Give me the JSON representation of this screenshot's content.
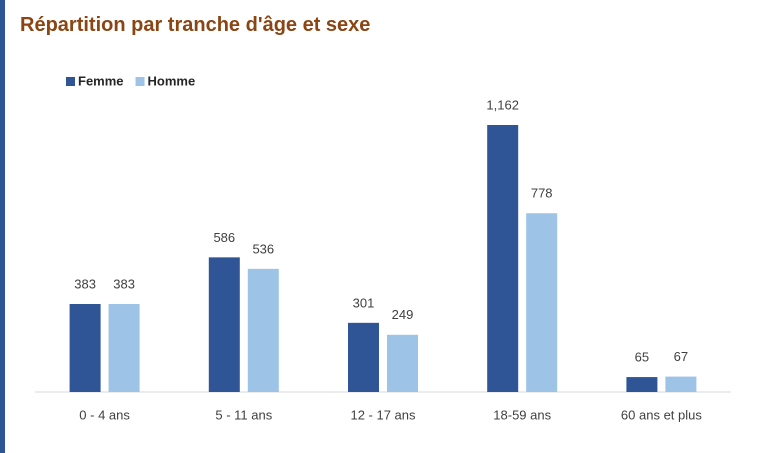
{
  "chart_data": {
    "type": "bar",
    "title": "Répartition par tranche d'âge et sexe",
    "categories": [
      "0 - 4 ans",
      "5 - 11 ans",
      "12 - 17 ans",
      "18-59 ans",
      "60 ans et plus"
    ],
    "series": [
      {
        "name": "Femme",
        "color": "#2f5597",
        "values": [
          383,
          586,
          301,
          1162,
          65
        ],
        "value_labels": [
          "383",
          "586",
          "301",
          "1,162",
          "65"
        ]
      },
      {
        "name": "Homme",
        "color": "#9dc3e6",
        "values": [
          383,
          536,
          249,
          778,
          67
        ]
      }
    ],
    "legend": "top-left"
  }
}
